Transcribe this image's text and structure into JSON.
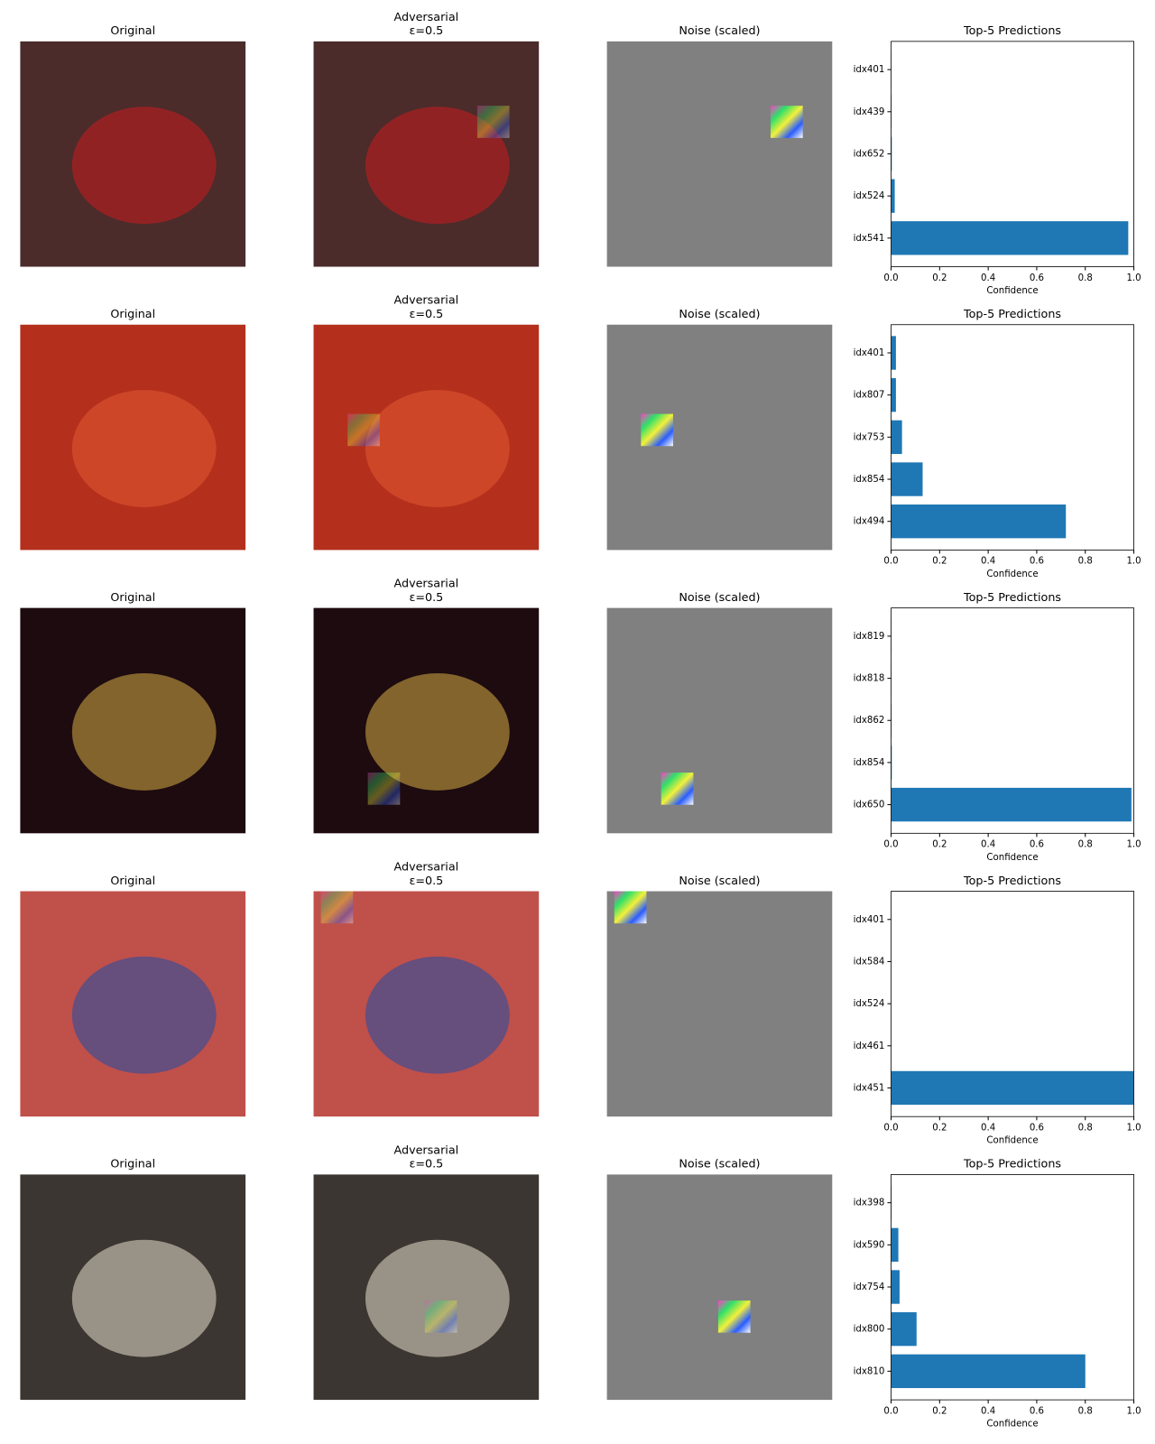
{
  "panels": [
    {
      "original_title": "Original",
      "adversarial_title": [
        "Adversarial",
        "ε=0.5"
      ],
      "noise_title": "Noise (scaled)"
    },
    {
      "original_title": "Original",
      "adversarial_title": [
        "Adversarial",
        "ε=0.5"
      ],
      "noise_title": "Noise (scaled)"
    },
    {
      "original_title": "Original",
      "adversarial_title": [
        "Adversarial",
        "ε=0.5"
      ],
      "noise_title": "Noise (scaled)"
    },
    {
      "original_title": "Original",
      "adversarial_title": [
        "Adversarial",
        "ε=0.5"
      ],
      "noise_title": "Noise (scaled)"
    },
    {
      "original_title": "Original",
      "adversarial_title": [
        "Adversarial",
        "ε=0.5"
      ],
      "noise_title": "Noise (scaled)"
    }
  ],
  "chart_data": [
    {
      "type": "barh",
      "title": "Top-5 Predictions",
      "xlabel": "Confidence",
      "color": "#1f77b4",
      "categories": [
        "idx401",
        "idx439",
        "idx652",
        "idx524",
        "idx541"
      ],
      "values": [
        0.001,
        0.002,
        0.003,
        0.015,
        0.977
      ],
      "xlim": [
        0,
        1
      ],
      "xticks": [
        {
          "value": 0,
          "label": "0.0"
        },
        0.2,
        0.4,
        0.6,
        0.8,
        {
          "value": 1,
          "label": "1.0"
        }
      ]
    },
    {
      "type": "barh",
      "title": "Top-5 Predictions",
      "xlabel": "Confidence",
      "color": "#1f77b4",
      "categories": [
        "idx401",
        "idx807",
        "idx753",
        "idx854",
        "idx494"
      ],
      "values": [
        0.02,
        0.02,
        0.045,
        0.13,
        0.72
      ],
      "xlim": [
        0,
        1
      ],
      "xticks": [
        {
          "value": 0,
          "label": "0.0"
        },
        0.2,
        0.4,
        0.6,
        0.8,
        {
          "value": 1,
          "label": "1.0"
        }
      ]
    },
    {
      "type": "barh",
      "title": "Top-5 Predictions",
      "xlabel": "Confidence",
      "color": "#1f77b4",
      "categories": [
        "idx819",
        "idx818",
        "idx862",
        "idx854",
        "idx650"
      ],
      "values": [
        0.001,
        0.001,
        0.002,
        0.003,
        0.99
      ],
      "xlim": [
        0,
        1
      ],
      "xticks": [
        {
          "value": 0,
          "label": "0.0"
        },
        0.2,
        0.4,
        0.6,
        0.8,
        {
          "value": 1,
          "label": "1.0"
        }
      ]
    },
    {
      "type": "barh",
      "title": "Top-5 Predictions",
      "xlabel": "Confidence",
      "color": "#1f77b4",
      "categories": [
        "idx401",
        "idx584",
        "idx524",
        "idx461",
        "idx451"
      ],
      "values": [
        0.0001,
        0.0001,
        0.0002,
        0.0003,
        0.999
      ],
      "xlim": [
        0,
        1
      ],
      "xticks": [
        {
          "value": 0,
          "label": "0.0"
        },
        0.2,
        0.4,
        0.6,
        0.8,
        {
          "value": 1,
          "label": "1.0"
        }
      ]
    },
    {
      "type": "barh",
      "title": "Top-5 Predictions",
      "xlabel": "Confidence",
      "color": "#1f77b4",
      "categories": [
        "idx398",
        "idx590",
        "idx754",
        "idx800",
        "idx810"
      ],
      "values": [
        0.002,
        0.03,
        0.035,
        0.105,
        0.8
      ],
      "xlim": [
        0,
        1
      ],
      "xticks": [
        {
          "value": 0,
          "label": "0.0"
        },
        0.2,
        0.4,
        0.6,
        0.8,
        {
          "value": 1,
          "label": "1.0"
        }
      ]
    }
  ]
}
